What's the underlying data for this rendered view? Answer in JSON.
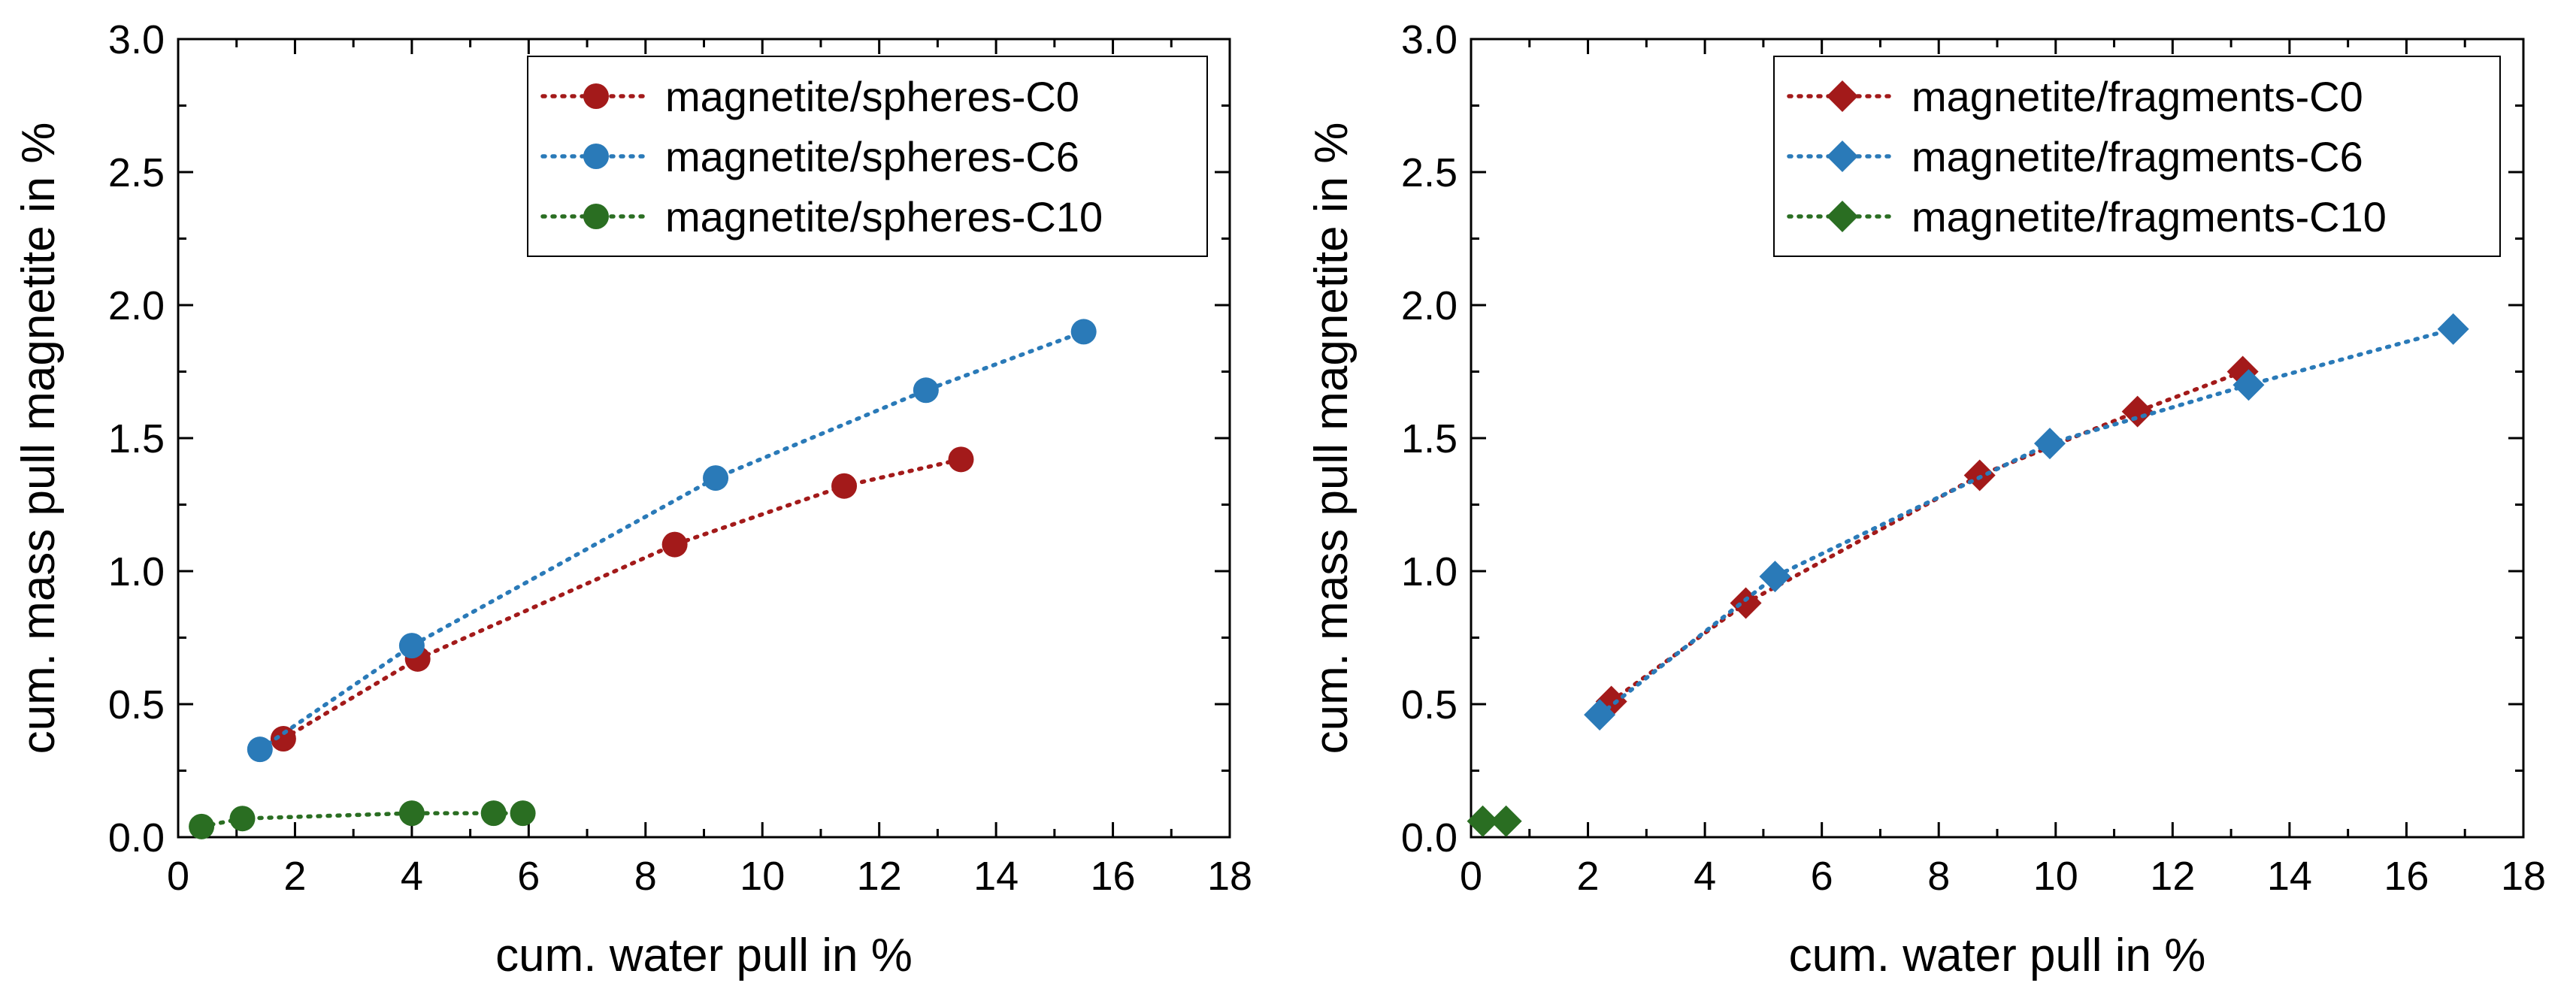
{
  "chart_data": [
    {
      "type": "scatter",
      "marker": "circle",
      "xlabel": "cum. water pull in %",
      "ylabel": "cum. mass pull magnetite in %",
      "xlim": [
        0,
        18
      ],
      "ylim": [
        0,
        3.0
      ],
      "xticks": [
        "0",
        "2",
        "4",
        "6",
        "8",
        "10",
        "12",
        "14",
        "16",
        "18"
      ],
      "yticks": [
        "0.0",
        "0.5",
        "1.0",
        "1.5",
        "2.0",
        "2.5",
        "3.0"
      ],
      "legend_position": "top-right",
      "series": [
        {
          "name": "magnetite/spheres-C0",
          "color": "#a31a1a",
          "x": [
            1.8,
            4.1,
            8.5,
            11.4,
            13.4
          ],
          "y": [
            0.37,
            0.67,
            1.1,
            1.32,
            1.42
          ]
        },
        {
          "name": "magnetite/spheres-C6",
          "color": "#2a7ab8",
          "x": [
            1.4,
            4.0,
            9.2,
            12.8,
            15.5
          ],
          "y": [
            0.33,
            0.72,
            1.35,
            1.68,
            1.9
          ]
        },
        {
          "name": "magnetite/spheres-C10",
          "color": "#2a6e22",
          "x": [
            0.4,
            1.1,
            4.0,
            5.4,
            5.9
          ],
          "y": [
            0.04,
            0.07,
            0.09,
            0.09,
            0.09
          ]
        }
      ]
    },
    {
      "type": "scatter",
      "marker": "diamond",
      "xlabel": "cum. water pull in %",
      "ylabel": "cum. mass pull magnetite in %",
      "xlim": [
        0,
        18
      ],
      "ylim": [
        0,
        3.0
      ],
      "xticks": [
        "0",
        "2",
        "4",
        "6",
        "8",
        "10",
        "12",
        "14",
        "16",
        "18"
      ],
      "yticks": [
        "0.0",
        "0.5",
        "1.0",
        "1.5",
        "2.0",
        "2.5",
        "3.0"
      ],
      "legend_position": "top-right",
      "series": [
        {
          "name": "magnetite/fragments-C0",
          "color": "#a31a1a",
          "x": [
            2.4,
            4.7,
            8.7,
            11.4,
            13.2
          ],
          "y": [
            0.51,
            0.88,
            1.36,
            1.6,
            1.75
          ]
        },
        {
          "name": "magnetite/fragments-C6",
          "color": "#2a7ab8",
          "x": [
            2.2,
            5.2,
            9.9,
            13.3,
            16.8
          ],
          "y": [
            0.46,
            0.98,
            1.48,
            1.7,
            1.91
          ]
        },
        {
          "name": "magnetite/fragments-C10",
          "color": "#2a6e22",
          "x": [
            0.2,
            0.6
          ],
          "y": [
            0.06,
            0.06
          ]
        }
      ]
    }
  ]
}
